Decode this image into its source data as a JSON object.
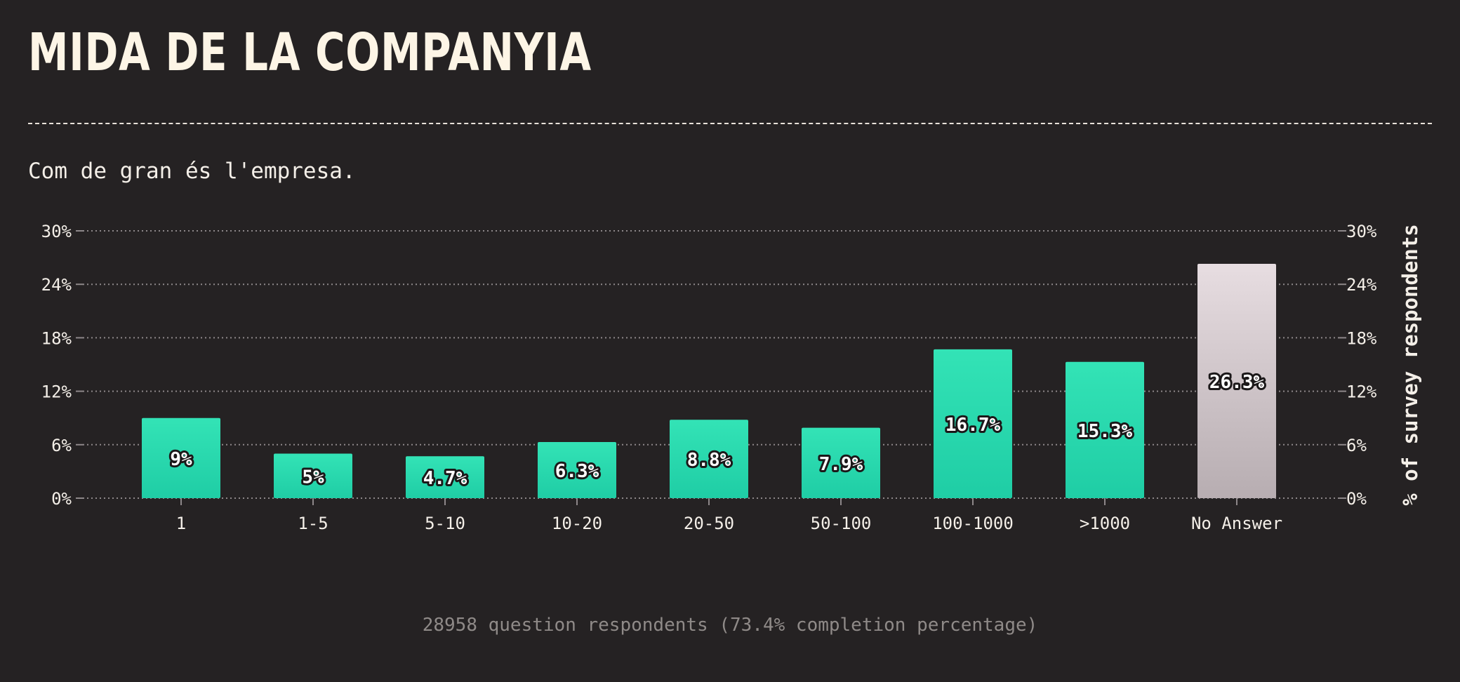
{
  "header": {
    "title": "MIDA DE LA COMPANYIA",
    "subtitle": "Com de gran és l'empresa."
  },
  "footer": {
    "note": "28958 question respondents (73.4% completion percentage)"
  },
  "colors": {
    "bar_top": "#33e3b6",
    "bar_bottom": "#1fcda5",
    "na_top": "#e7dde1",
    "na_bottom": "#b7adb1",
    "grid": "#8d8789",
    "tick_text": "#f4efe8"
  },
  "chart_data": {
    "type": "bar",
    "categories": [
      "1",
      "1-5",
      "5-10",
      "10-20",
      "20-50",
      "50-100",
      "100-1000",
      ">1000",
      "No Answer"
    ],
    "values": [
      9,
      5,
      4.7,
      6.3,
      8.8,
      7.9,
      16.7,
      15.3,
      26.3
    ],
    "value_labels": [
      "9%",
      "5%",
      "4.7%",
      "6.3%",
      "8.8%",
      "7.9%",
      "16.7%",
      "15.3%",
      "26.3%"
    ],
    "highlight_category": "No Answer",
    "ylabel": "% of survey respondents",
    "ylim": [
      0,
      30
    ],
    "yticks": [
      "0%",
      "6%",
      "12%",
      "18%",
      "24%",
      "30%"
    ],
    "grid": true,
    "legend": "none"
  }
}
